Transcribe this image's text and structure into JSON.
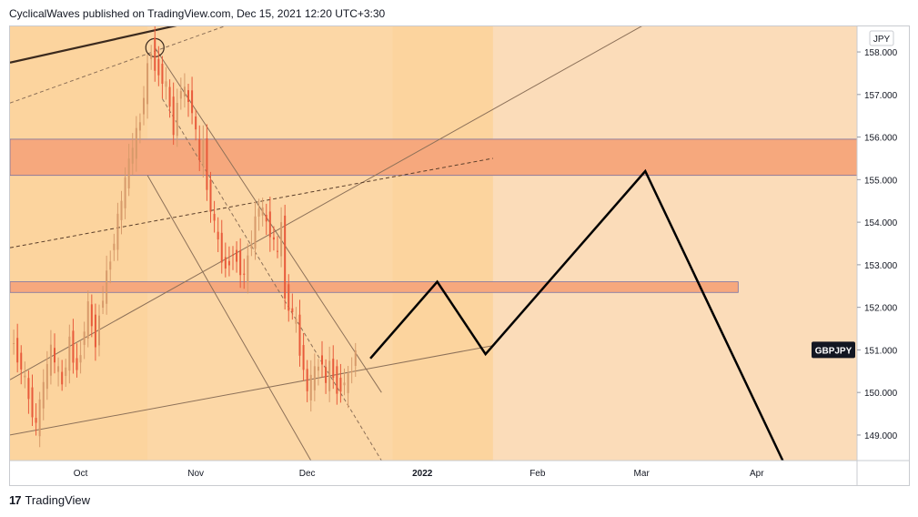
{
  "header": {
    "attribution": "CyclicalWaves published on TradingView.com, Dec 15, 2021 12:20 UTC+3:30"
  },
  "footer": {
    "logo_text": "17",
    "brand": "TradingView"
  },
  "colors": {
    "candle_up": "#d79a6a",
    "candle_down": "#e85a3a",
    "zone_fill": "#f6a87d",
    "bg_light": "#fbdcb9",
    "bg_mid": "#fcd49e",
    "projection": "#000000",
    "channel": "#8c7058"
  },
  "chart_data": {
    "type": "candlestick",
    "symbol": "GBPJPY",
    "currency": "JPY",
    "last_price": 151.0,
    "x_ticks": [
      "Oct",
      "Nov",
      "Dec",
      "2022",
      "Feb",
      "Mar",
      "Apr"
    ],
    "y_ticks": [
      "158.000",
      "157.000",
      "156.000",
      "155.000",
      "154.000",
      "153.000",
      "152.000",
      "151.000",
      "150.000",
      "149.000"
    ],
    "ylim": [
      148.4,
      158.6
    ],
    "xlim": [
      "2021-09-12",
      "2022-04-28"
    ],
    "price_path": [
      [
        "2021-09-13",
        151.3
      ],
      [
        "2021-09-16",
        150.6
      ],
      [
        "2021-09-20",
        149.2
      ],
      [
        "2021-09-22",
        150.2
      ],
      [
        "2021-09-24",
        151.0
      ],
      [
        "2021-09-27",
        150.2
      ],
      [
        "2021-09-29",
        151.2
      ],
      [
        "2021-10-01",
        150.5
      ],
      [
        "2021-10-04",
        152.0
      ],
      [
        "2021-10-06",
        151.2
      ],
      [
        "2021-10-08",
        152.3
      ],
      [
        "2021-10-11",
        153.6
      ],
      [
        "2021-10-13",
        154.5
      ],
      [
        "2021-10-15",
        155.4
      ],
      [
        "2021-10-18",
        156.4
      ],
      [
        "2021-10-20",
        157.6
      ],
      [
        "2021-10-21",
        158.1
      ],
      [
        "2021-10-22",
        157.7
      ],
      [
        "2021-10-25",
        157.2
      ],
      [
        "2021-10-27",
        156.2
      ],
      [
        "2021-10-29",
        157.2
      ],
      [
        "2021-11-01",
        156.7
      ],
      [
        "2021-11-03",
        155.4
      ],
      [
        "2021-11-04",
        155.9
      ],
      [
        "2021-11-05",
        154.8
      ],
      [
        "2021-11-08",
        153.5
      ],
      [
        "2021-11-10",
        152.9
      ],
      [
        "2021-11-12",
        153.3
      ],
      [
        "2021-11-15",
        152.7
      ],
      [
        "2021-11-17",
        153.6
      ],
      [
        "2021-11-19",
        154.4
      ],
      [
        "2021-11-22",
        153.8
      ],
      [
        "2021-11-24",
        153.2
      ],
      [
        "2021-11-25",
        154.0
      ],
      [
        "2021-11-26",
        152.3
      ],
      [
        "2021-11-29",
        151.6
      ],
      [
        "2021-11-30",
        151.0
      ],
      [
        "2021-12-01",
        150.6
      ],
      [
        "2021-12-02",
        150.0
      ],
      [
        "2021-12-03",
        150.3
      ],
      [
        "2021-12-06",
        150.8
      ],
      [
        "2021-12-07",
        150.1
      ],
      [
        "2021-12-08",
        150.7
      ],
      [
        "2021-12-09",
        150.4
      ],
      [
        "2021-12-10",
        150.1
      ],
      [
        "2021-12-13",
        150.3
      ],
      [
        "2021-12-14",
        150.6
      ],
      [
        "2021-12-15",
        151.0
      ]
    ],
    "projection_path": [
      [
        "2021-12-18",
        150.8
      ],
      [
        "2022-01-05",
        152.6
      ],
      [
        "2022-01-18",
        150.9
      ],
      [
        "2022-03-02",
        155.2
      ],
      [
        "2022-04-08",
        148.4
      ]
    ],
    "zones": [
      {
        "from": 155.1,
        "to": 155.95
      },
      {
        "from": 152.35,
        "to": 152.6
      }
    ],
    "grid": false
  }
}
